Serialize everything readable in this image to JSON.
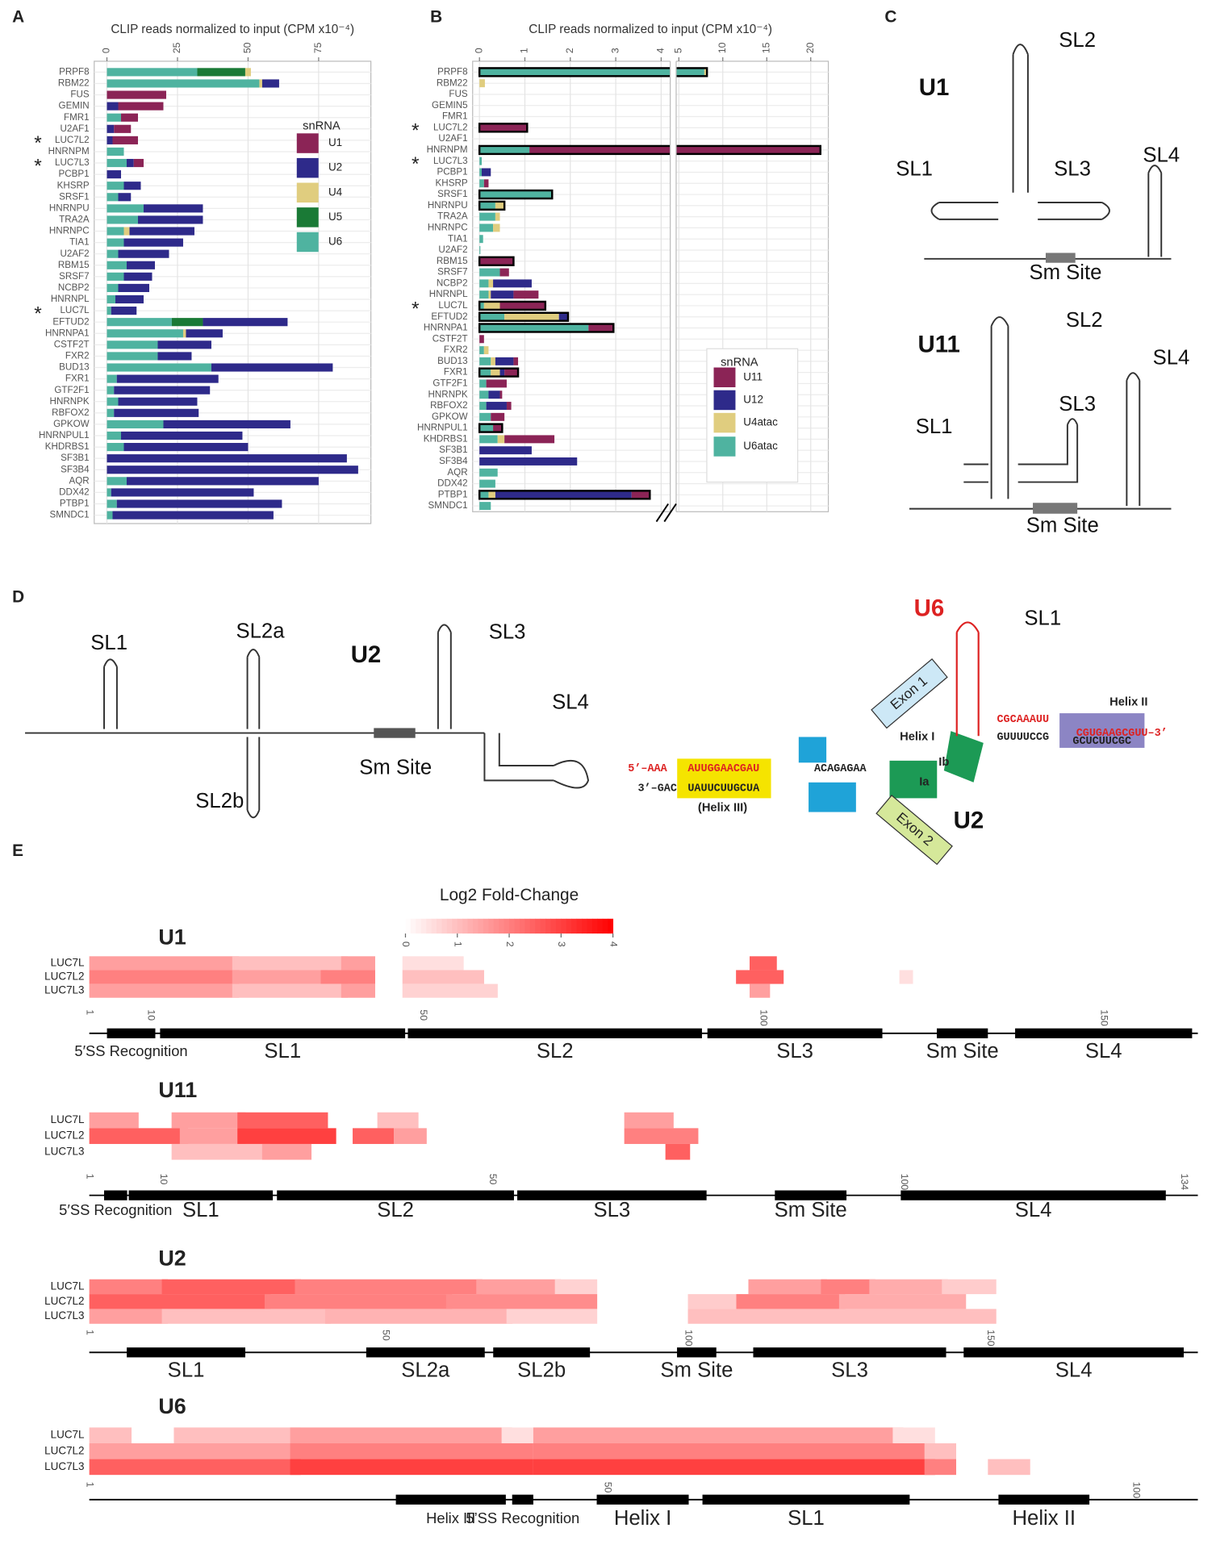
{
  "panel_labels": [
    "A",
    "B",
    "C",
    "D",
    "E"
  ],
  "chart_data": [
    {
      "type": "bar",
      "orientation": "horizontal",
      "stacked": true,
      "title": "CLIP reads normalized to input (CPM x10⁻⁴)",
      "categories": [
        "PRPF8",
        "RBM22",
        "FUS",
        "GEMIN",
        "FMR1",
        "U2AF1",
        "LUC7L2",
        "HNRNPM",
        "LUC7L3",
        "PCBP1",
        "KHSRP",
        "SRSF1",
        "HNRNPU",
        "TRA2A",
        "HNRNPC",
        "TIA1",
        "U2AF2",
        "RBM15",
        "SRSF7",
        "NCBP2",
        "HNRNPL",
        "LUC7L",
        "EFTUD2",
        "HNRNPA1",
        "CSTF2T",
        "FXR2",
        "BUD13",
        "FXR1",
        "GTF2F1",
        "HNRNPK",
        "RBFOX2",
        "GPKOW",
        "HNRNPUL1",
        "KHDRBS1",
        "SF3B1",
        "SF3B4",
        "AQR",
        "DDX42",
        "PTBP1",
        "SMNDC1"
      ],
      "series": [
        {
          "name": "U1",
          "color": "#8b2456",
          "values": [
            0,
            0,
            21,
            16,
            6,
            6,
            9,
            0,
            3.5,
            0,
            0,
            0,
            0,
            0,
            0,
            0,
            0,
            0,
            0,
            0,
            0,
            0,
            0,
            0,
            0,
            0,
            0,
            0,
            0,
            0,
            0,
            0,
            0,
            0,
            0,
            0,
            0,
            0,
            0,
            0
          ]
        },
        {
          "name": "U2",
          "color": "#2e2a8a",
          "values": [
            0,
            6,
            0,
            4,
            0,
            2.5,
            2,
            0,
            2.5,
            5,
            6,
            4.5,
            21,
            23,
            23,
            21,
            18,
            10,
            10,
            11,
            10,
            9,
            30,
            13,
            19,
            12,
            43,
            36,
            34,
            28,
            30,
            45,
            43,
            44,
            85,
            89,
            68,
            50.5,
            58.5,
            57
          ]
        },
        {
          "name": "U4",
          "color": "#e0cd7f",
          "values": [
            2,
            1,
            0,
            0,
            0,
            0,
            0,
            0,
            0,
            0,
            0,
            0,
            0,
            0,
            2,
            0,
            0,
            0,
            0,
            0,
            0,
            0,
            0,
            1,
            0,
            0,
            0,
            0,
            0,
            0,
            0,
            0,
            0,
            0,
            0,
            0,
            0,
            0,
            0,
            0
          ]
        },
        {
          "name": "U5",
          "color": "#1a7a36",
          "values": [
            17,
            0,
            0,
            0,
            0,
            0,
            0,
            0,
            0,
            0,
            0,
            0,
            0,
            0,
            0,
            0,
            0,
            0,
            0,
            0,
            0,
            0,
            11,
            0,
            0,
            0,
            0,
            0,
            0,
            0,
            0,
            0,
            0,
            0,
            0,
            0,
            0,
            0,
            0,
            0
          ]
        },
        {
          "name": "U6",
          "color": "#4fb3a0",
          "values": [
            32,
            54,
            0,
            0,
            5,
            0,
            0,
            6,
            7,
            0,
            6,
            4,
            13,
            11,
            6,
            6,
            4,
            7,
            6,
            4,
            3,
            1.5,
            23,
            27,
            18,
            18,
            37,
            3.5,
            2.5,
            4,
            2.5,
            20,
            5,
            6,
            0,
            0,
            7,
            1.5,
            3.5,
            2
          ]
        }
      ],
      "xlim": [
        -4.5,
        93.5
      ],
      "xticks": [
        0,
        25,
        50,
        75
      ],
      "grid": true,
      "legend_title": "snRNA",
      "annotations": [
        {
          "text": "*",
          "category": "LUC7L2"
        },
        {
          "text": "*",
          "category": "LUC7L3"
        },
        {
          "text": "*",
          "category": "LUC7L"
        }
      ]
    },
    {
      "type": "bar",
      "orientation": "horizontal",
      "stacked": true,
      "title": "CLIP reads normalized to input (CPM x10⁻⁴)",
      "categories": [
        "PRPF8",
        "RBM22",
        "FUS",
        "GEMIN5",
        "FMR1",
        "LUC7L2",
        "U2AF1",
        "HNRNPM",
        "LUC7L3",
        "PCBP1",
        "KHSRP",
        "SRSF1",
        "HNRNPU",
        "TRA2A",
        "HNRNPC",
        "TIA1",
        "U2AF2",
        "RBM15",
        "SRSF7",
        "NCBP2",
        "HNRNPL",
        "LUC7L",
        "EFTUD2",
        "HNRNPA1",
        "CSTF2T",
        "FXR2",
        "BUD13",
        "FXR1",
        "GTF2F1",
        "HNRNPK",
        "RBFOX2",
        "GPKOW",
        "HNRNPUL1",
        "KHDRBS1",
        "SF3B1",
        "SF3B4",
        "AQR",
        "DDX42",
        "PTBP1",
        "SMNDC1"
      ],
      "series": [
        {
          "name": "U11",
          "color": "#8b2456",
          "values": [
            0,
            0,
            0,
            0,
            0,
            1.05,
            0,
            20,
            0,
            0,
            0.1,
            0,
            0,
            0,
            0,
            0,
            0,
            0.75,
            0.2,
            0,
            0.55,
            1.0,
            0,
            0.55,
            0.1,
            0,
            0.1,
            0.3,
            0.45,
            0.05,
            0.1,
            0.3,
            0.2,
            1.1,
            0,
            0,
            0,
            0,
            0.4,
            0
          ]
        },
        {
          "name": "U12",
          "color": "#2e2a8a",
          "values": [
            0,
            0,
            0,
            0,
            0,
            0,
            0,
            0,
            0,
            0.2,
            0,
            0,
            0,
            0,
            0,
            0,
            0,
            0,
            0,
            0.85,
            0.5,
            0,
            0.2,
            0,
            0,
            0,
            0.4,
            0.1,
            0,
            0.25,
            0.45,
            0,
            0,
            0,
            1.15,
            2.15,
            0,
            0,
            3.0,
            0
          ]
        },
        {
          "name": "U4atac",
          "color": "#e0cd7f",
          "values": [
            0.3,
            0.12,
            0,
            0,
            0,
            0,
            0,
            0,
            0,
            0,
            0,
            0,
            0.2,
            0.1,
            0.15,
            0,
            0,
            0,
            0,
            0.1,
            0.05,
            0.35,
            1.2,
            0,
            0,
            0.1,
            0.1,
            0.2,
            0,
            0,
            0,
            0,
            0,
            0.15,
            0,
            0,
            0,
            0,
            0.15,
            0
          ]
        },
        {
          "name": "U6atac",
          "color": "#4fb3a0",
          "values": [
            7.9,
            0,
            0,
            0,
            0,
            0,
            0,
            1.1,
            0.05,
            0.05,
            0.1,
            1.6,
            0.35,
            0.35,
            0.3,
            0.08,
            0.02,
            0,
            0.45,
            0.2,
            0.2,
            0.1,
            0.55,
            2.4,
            0,
            0.1,
            0.25,
            0.25,
            0.15,
            0.2,
            0.15,
            0.25,
            0.3,
            0.4,
            0,
            0,
            0.4,
            0.35,
            0.2,
            0.25
          ]
        }
      ],
      "xlim": [
        -0.15,
        22
      ],
      "axis_break": [
        4.2,
        4.7
      ],
      "xticks": [
        0,
        1,
        2,
        3,
        4,
        5,
        10,
        15,
        20
      ],
      "grid": true,
      "legend_title": "snRNA",
      "outlined": [
        "PRPF8",
        "LUC7L2",
        "HNRNPM",
        "SRSF1",
        "HNRNPU",
        "RBM15",
        "LUC7L",
        "EFTUD2",
        "HNRNPA1",
        "FXR1",
        "HNRNPUL1",
        "PTBP1"
      ],
      "annotations": [
        {
          "text": "*",
          "category": "LUC7L2"
        },
        {
          "text": "*",
          "category": "LUC7L3"
        },
        {
          "text": "*",
          "category": "LUC7L"
        }
      ]
    }
  ],
  "diagrams": {
    "C": [
      "U1",
      "SL2",
      "SL1",
      "SL3",
      "SL4",
      "Sm Site",
      "U11",
      "SL2",
      "SL4",
      "SL1",
      "SL3",
      "Sm Site"
    ],
    "D": [
      "SL1",
      "SL2a",
      "U2",
      "SL3",
      "SL4",
      "SL2b",
      "Sm Site",
      "U6",
      "SL1",
      "Exon 1",
      "Helix I",
      "Ib",
      "Ia",
      "Helix II",
      "(Helix III)",
      "U2",
      "Exon 2",
      "5’–AAA",
      "AUUGGAACGAU",
      "ACAGAGAA",
      "3’–GAC",
      "UAUUCUUGCUA",
      "CGCAAAUU",
      "CGUGAAGCGUU–3’",
      "GUUUUCCG",
      "GCUCUUCGC"
    ]
  },
  "heatmaps": {
    "colorbar": {
      "title": "Log2 Fold-Change",
      "lim": [
        0,
        4
      ],
      "ticks": [
        0,
        1,
        2,
        3,
        4
      ]
    },
    "blocks": [
      {
        "name": "U1",
        "rows": [
          "LUC7L",
          "LUC7L2",
          "LUC7L3"
        ],
        "xticks": [
          1,
          10,
          50,
          100,
          150
        ],
        "length": 164,
        "domains": [
          {
            "label": "5′SS Recognition",
            "start": 3.6,
            "end": 10.7
          },
          {
            "label": "SL1",
            "start": 11.4,
            "end": 47.4
          },
          {
            "label": "SL2",
            "start": 47.8,
            "end": 91
          },
          {
            "label": "SL3",
            "start": 91.8,
            "end": 117.5
          },
          {
            "label": "Sm Site",
            "start": 125.5,
            "end": 133
          },
          {
            "label": "SL4",
            "start": 137,
            "end": 163
          }
        ],
        "cells": [
          [
            [
              1,
              22,
              1.5
            ],
            [
              22,
              38,
              1
            ],
            [
              38,
              42,
              1.5
            ],
            [
              47,
              55,
              0.5
            ],
            [
              98,
              101,
              2.5
            ]
          ],
          [
            [
              1,
              22,
              2
            ],
            [
              22,
              35,
              1.5
            ],
            [
              35,
              42,
              2
            ],
            [
              47,
              58,
              1
            ],
            [
              96,
              102,
              2.5
            ],
            [
              120,
              121,
              0.5
            ]
          ],
          [
            [
              1,
              22,
              1.5
            ],
            [
              22,
              38,
              1
            ],
            [
              38,
              42,
              1.5
            ],
            [
              47,
              60,
              0.7
            ],
            [
              98,
              100,
              1.5
            ]
          ]
        ]
      },
      {
        "name": "U11",
        "rows": [
          "LUC7L",
          "LUC7L2",
          "LUC7L3"
        ],
        "xticks": [
          1,
          10,
          50,
          100,
          134
        ],
        "length": 134,
        "domains": [
          {
            "label": "5′SS Recognition",
            "start": 2.8,
            "end": 5.6
          },
          {
            "label": "SL1",
            "start": 5.8,
            "end": 23.3
          },
          {
            "label": "SL2",
            "start": 23.8,
            "end": 52.6
          },
          {
            "label": "SL3",
            "start": 53,
            "end": 76
          },
          {
            "label": "Sm Site",
            "start": 84.3,
            "end": 93
          },
          {
            "label": "SL4",
            "start": 99.6,
            "end": 131.8
          }
        ],
        "cells": [
          [
            [
              1,
              6,
              1.5
            ],
            [
              11,
              19,
              1.5
            ],
            [
              19,
              29,
              2.5
            ],
            [
              36,
              40,
              1
            ],
            [
              66,
              71,
              1.5
            ]
          ],
          [
            [
              1,
              12,
              2.5
            ],
            [
              12,
              19,
              1.5
            ],
            [
              19,
              30,
              3
            ],
            [
              33,
              37,
              2.5
            ],
            [
              38,
              41,
              1.5
            ],
            [
              66,
              74,
              2
            ]
          ],
          [
            [
              11,
              22,
              1
            ],
            [
              22,
              27,
              1.5
            ],
            [
              71,
              73,
              2.5
            ]
          ]
        ]
      },
      {
        "name": "U2",
        "rows": [
          "LUC7L",
          "LUC7L2",
          "LUC7L3"
        ],
        "xticks": [
          1,
          50,
          100,
          150
        ],
        "length": 183,
        "domains": [
          {
            "label": "SL1",
            "start": 7.2,
            "end": 26.8
          },
          {
            "label": "SL2a",
            "start": 46.8,
            "end": 66.4
          },
          {
            "label": "SL2b",
            "start": 67.8,
            "end": 83.8
          },
          {
            "label": "Sm Site",
            "start": 98.2,
            "end": 104.7
          },
          {
            "label": "SL3",
            "start": 110.8,
            "end": 142.7
          },
          {
            "label": "SL4",
            "start": 145.6,
            "end": 182
          }
        ],
        "cells": [
          [
            [
              1,
              13,
              2
            ],
            [
              13,
              35,
              2.5
            ],
            [
              35,
              65,
              2
            ],
            [
              65,
              78,
              1.5
            ],
            [
              78,
              84,
              0.7
            ],
            [
              110,
              122,
              1.5
            ],
            [
              122,
              130,
              2
            ],
            [
              130,
              142,
              1.3
            ],
            [
              142,
              150,
              0.8
            ]
          ],
          [
            [
              1,
              30,
              2.5
            ],
            [
              30,
              60,
              2
            ],
            [
              60,
              84,
              1.8
            ],
            [
              100,
              108,
              0.8
            ],
            [
              108,
              125,
              2
            ],
            [
              125,
              145,
              1.3
            ]
          ],
          [
            [
              1,
              13,
              1.5
            ],
            [
              13,
              40,
              1
            ],
            [
              40,
              70,
              1.2
            ],
            [
              70,
              84,
              0.7
            ],
            [
              100,
              150,
              1
            ]
          ]
        ]
      },
      {
        "name": "U6",
        "rows": [
          "LUC7L",
          "LUC7L2",
          "LUC7L3"
        ],
        "xticks": [
          1,
          50,
          100
        ],
        "length": 106,
        "domains": [
          {
            "label": "Helix III",
            "start": 30,
            "end": 40.4
          },
          {
            "label": "5’SS Recognition",
            "start": 41,
            "end": 43
          },
          {
            "label": "Helix I",
            "start": 49,
            "end": 57.7
          },
          {
            "label": "SL1",
            "start": 59,
            "end": 78.6
          },
          {
            "label": "Helix II",
            "start": 87,
            "end": 95.6
          }
        ],
        "cells": [
          [
            [
              1,
              4,
              1
            ],
            [
              9,
              20,
              1
            ],
            [
              20,
              40,
              1.5
            ],
            [
              40,
              43,
              0.5
            ],
            [
              43,
              77,
              1.5
            ],
            [
              77,
              80,
              0.5
            ]
          ],
          [
            [
              1,
              20,
              1.5
            ],
            [
              20,
              42,
              2
            ],
            [
              43,
              80,
              2
            ],
            [
              80,
              82,
              1
            ]
          ],
          [
            [
              1,
              20,
              2.5
            ],
            [
              20,
              42,
              3
            ],
            [
              43,
              80,
              3
            ],
            [
              80,
              82,
              2
            ],
            [
              86,
              89,
              1
            ]
          ]
        ]
      }
    ]
  }
}
